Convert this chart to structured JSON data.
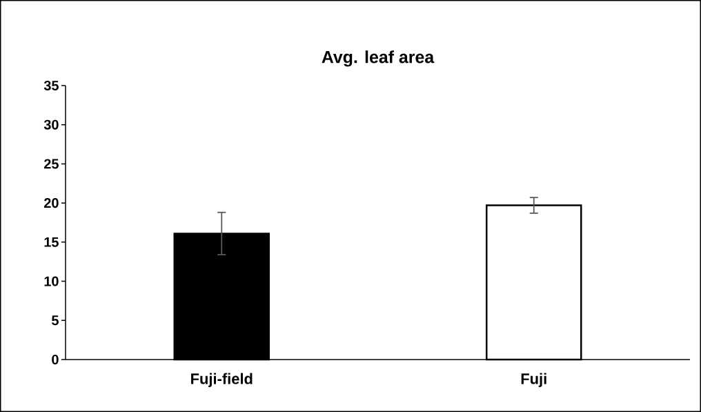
{
  "chart_data": {
    "type": "bar",
    "title": "Avg. leaf area",
    "categories": [
      "Fuji-field",
      "Fuji"
    ],
    "values": [
      16.1,
      19.7
    ],
    "errors": [
      2.7,
      1.0
    ],
    "colors": [
      "#000000",
      "#ffffff"
    ],
    "ylim": [
      0,
      35
    ],
    "yticks": [
      0,
      5,
      10,
      15,
      20,
      25,
      30,
      35
    ]
  }
}
